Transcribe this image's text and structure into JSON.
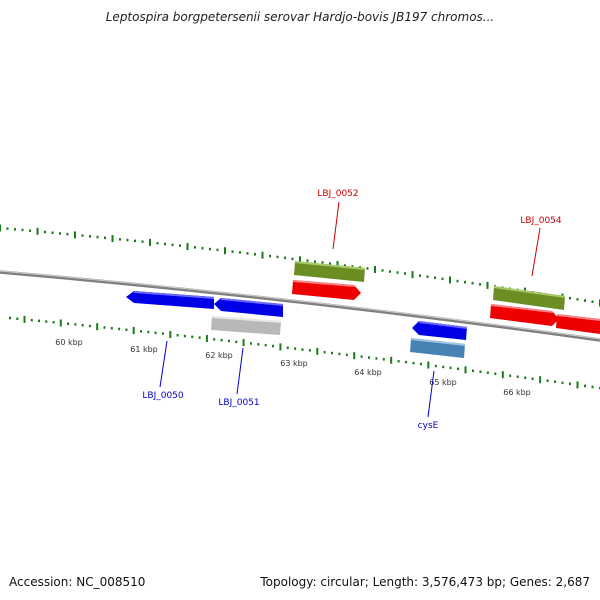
{
  "title": "Leptospira borgpetersenii serovar Hardjo-bovis JB197 chromos...",
  "footer": {
    "accession": "Accession: NC_008510",
    "summary": "Topology: circular; Length: 3,576,473 bp; Genes: 2,687"
  },
  "colors": {
    "backbone": "#7f7f7f",
    "tick": "#1a7a1a",
    "gene_blue": "#0000e6",
    "gene_red": "#ee0000",
    "gene_olive": "#6b8e23",
    "gene_gray": "#b8b8b8",
    "gene_steel": "#4682b4",
    "label_red": "#cc0000",
    "label_blue": "#0000cc"
  },
  "scale_labels": [
    "60 kbp",
    "61 kbp",
    "62 kbp",
    "63 kbp",
    "64 kbp",
    "65 kbp",
    "66 kbp"
  ],
  "gene_labels": [
    {
      "text": "LBJ_0050",
      "color": "blue"
    },
    {
      "text": "LBJ_0051",
      "color": "blue"
    },
    {
      "text": "LBJ_0052",
      "color": "red"
    },
    {
      "text": "LBJ_0054",
      "color": "red"
    },
    {
      "text": "cysE",
      "color": "blue"
    }
  ]
}
